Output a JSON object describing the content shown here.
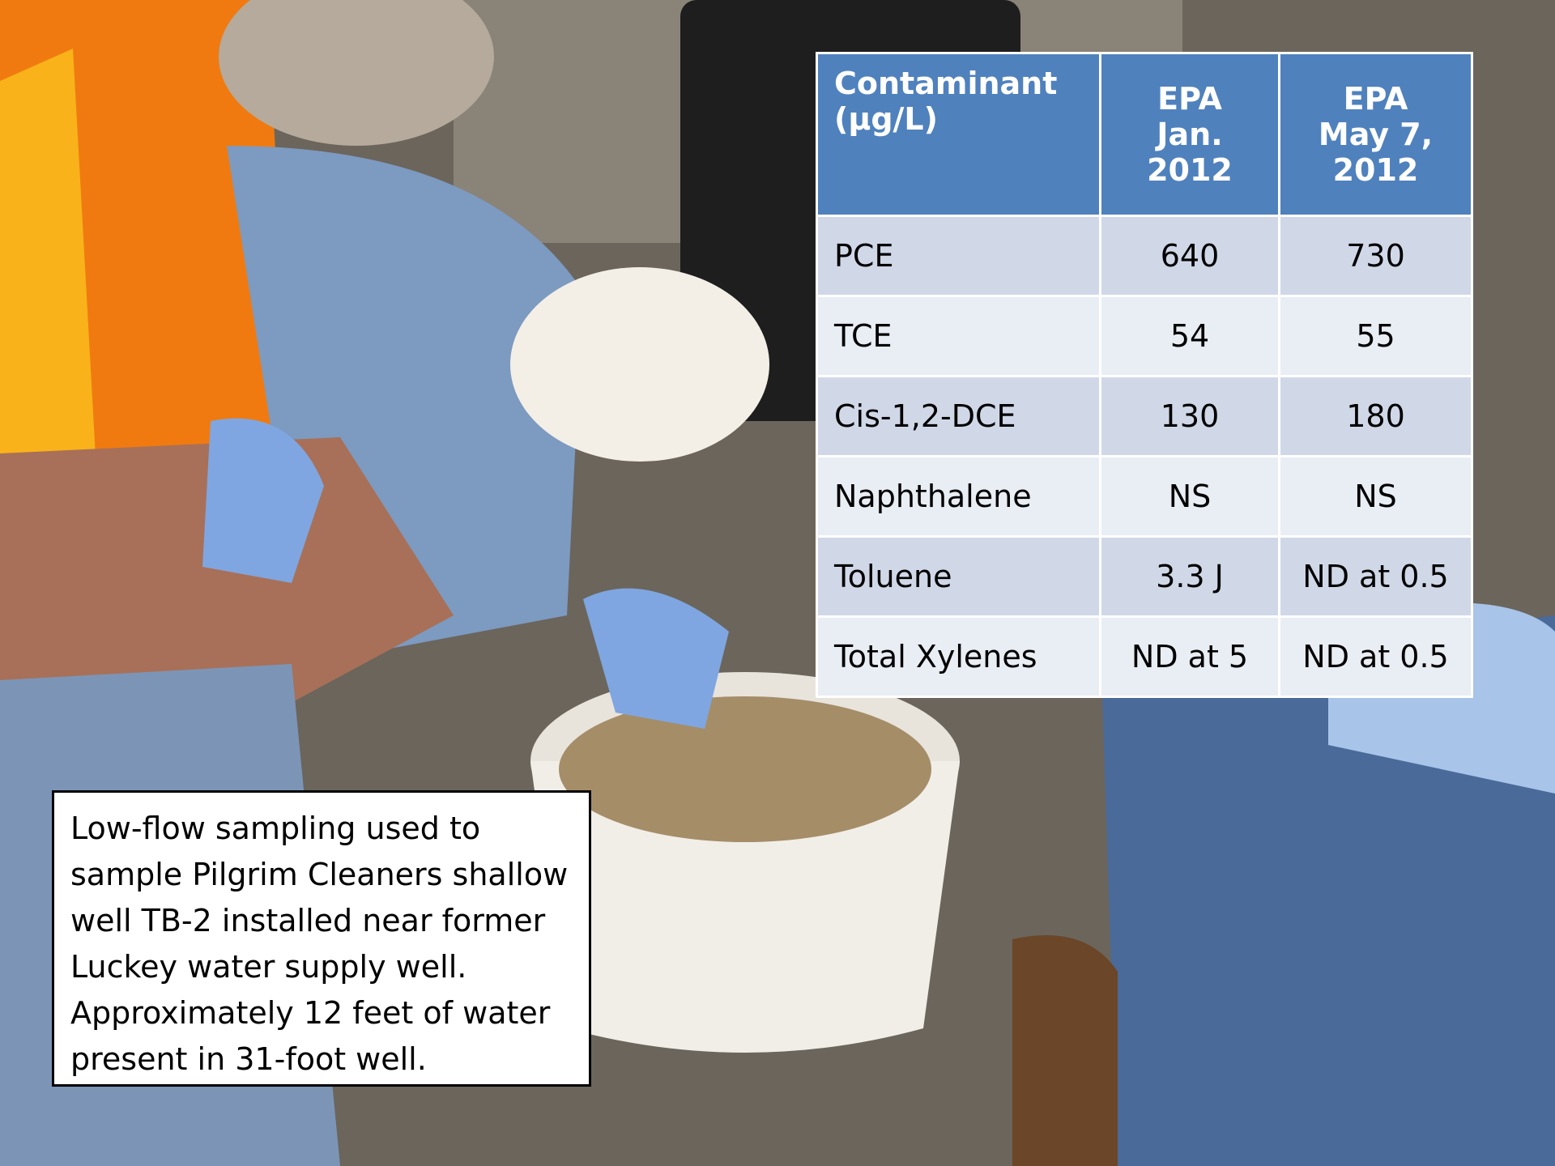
{
  "table": {
    "header": [
      [
        "Contaminant",
        "(µg/L)"
      ],
      [
        "EPA",
        "Jan.",
        "2012"
      ],
      [
        "EPA",
        "May 7,",
        "2012"
      ]
    ],
    "rows": [
      [
        "PCE",
        "640",
        "730"
      ],
      [
        "TCE",
        "54",
        "55"
      ],
      [
        "Cis-1,2-DCE",
        "130",
        "180"
      ],
      [
        "Naphthalene",
        "NS",
        "NS"
      ],
      [
        "Toluene",
        "3.3 J",
        "ND at 0.5"
      ],
      [
        "Total Xylenes",
        "ND at 5",
        "ND at 0.5"
      ]
    ]
  },
  "caption": {
    "lines": [
      "Low-flow sampling used to",
      "sample Pilgrim Cleaners shallow",
      "well TB-2 installed near former",
      "Luckey water supply well.",
      "Approximately 12 feet of water",
      "present in 31-foot well."
    ]
  }
}
